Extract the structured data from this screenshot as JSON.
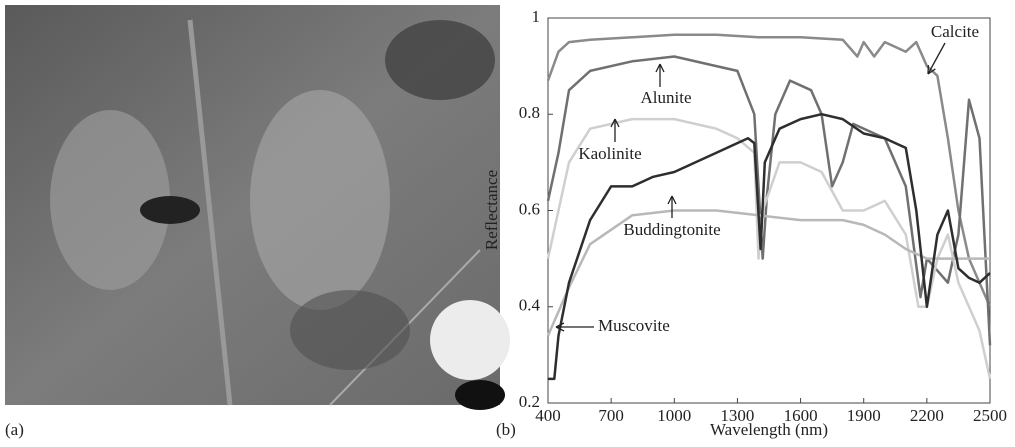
{
  "panels": {
    "a": "(a)",
    "b": "(b)"
  },
  "chart_data": {
    "type": "line",
    "xlabel": "Wavelength (nm)",
    "ylabel": "Reflectance",
    "xlim": [
      400,
      2500
    ],
    "xticks": [
      400,
      700,
      1000,
      1300,
      1600,
      1900,
      2200,
      2500
    ],
    "ylim": [
      0.2,
      1
    ],
    "yticks": [
      0.2,
      0.4,
      0.6,
      0.8,
      1
    ],
    "grid": false,
    "series": [
      {
        "name": "Calcite",
        "color": "#8a8a8a",
        "x": [
          400,
          450,
          500,
          600,
          800,
          1000,
          1200,
          1400,
          1600,
          1800,
          1870,
          1900,
          1950,
          2000,
          2100,
          2150,
          2200,
          2250,
          2300,
          2350,
          2400,
          2450,
          2500
        ],
        "values": [
          0.87,
          0.93,
          0.95,
          0.955,
          0.96,
          0.965,
          0.965,
          0.96,
          0.96,
          0.955,
          0.92,
          0.95,
          0.92,
          0.95,
          0.93,
          0.95,
          0.9,
          0.88,
          0.75,
          0.6,
          0.5,
          0.45,
          0.4
        ]
      },
      {
        "name": "Alunite",
        "color": "#707070",
        "x": [
          400,
          450,
          500,
          600,
          800,
          1000,
          1200,
          1300,
          1380,
          1420,
          1440,
          1480,
          1550,
          1650,
          1700,
          1750,
          1800,
          1850,
          2000,
          2100,
          2170,
          2200,
          2300,
          2350,
          2400,
          2450,
          2500
        ],
        "values": [
          0.62,
          0.72,
          0.85,
          0.89,
          0.91,
          0.92,
          0.9,
          0.89,
          0.8,
          0.5,
          0.63,
          0.8,
          0.87,
          0.85,
          0.8,
          0.65,
          0.7,
          0.78,
          0.75,
          0.65,
          0.42,
          0.5,
          0.45,
          0.55,
          0.83,
          0.75,
          0.32
        ]
      },
      {
        "name": "Kaolinite",
        "color": "#cfcfcf",
        "x": [
          400,
          500,
          600,
          800,
          1000,
          1200,
          1300,
          1380,
          1400,
          1420,
          1500,
          1600,
          1700,
          1800,
          1900,
          2000,
          2100,
          2160,
          2200,
          2250,
          2300,
          2350,
          2400,
          2450,
          2500
        ],
        "values": [
          0.5,
          0.7,
          0.77,
          0.79,
          0.79,
          0.77,
          0.75,
          0.72,
          0.5,
          0.6,
          0.7,
          0.7,
          0.68,
          0.6,
          0.6,
          0.62,
          0.55,
          0.4,
          0.4,
          0.5,
          0.55,
          0.45,
          0.4,
          0.35,
          0.25
        ]
      },
      {
        "name": "Buddingtonite",
        "color": "#b8b8b8",
        "x": [
          400,
          500,
          600,
          800,
          1000,
          1200,
          1400,
          1600,
          1800,
          1900,
          2000,
          2100,
          2200,
          2300,
          2400,
          2500
        ],
        "values": [
          0.34,
          0.44,
          0.53,
          0.59,
          0.6,
          0.6,
          0.59,
          0.58,
          0.58,
          0.57,
          0.55,
          0.52,
          0.5,
          0.5,
          0.5,
          0.5
        ]
      },
      {
        "name": "Muscovite",
        "color": "#2e2e2e",
        "x": [
          400,
          430,
          450,
          500,
          600,
          700,
          800,
          900,
          1000,
          1200,
          1350,
          1380,
          1410,
          1430,
          1500,
          1600,
          1700,
          1800,
          1900,
          2000,
          2100,
          2150,
          2200,
          2250,
          2300,
          2350,
          2400,
          2450,
          2500
        ],
        "values": [
          0.25,
          0.25,
          0.34,
          0.45,
          0.58,
          0.65,
          0.65,
          0.67,
          0.68,
          0.72,
          0.75,
          0.74,
          0.52,
          0.7,
          0.77,
          0.79,
          0.8,
          0.79,
          0.76,
          0.75,
          0.73,
          0.6,
          0.4,
          0.55,
          0.6,
          0.48,
          0.46,
          0.45,
          0.47
        ]
      }
    ]
  }
}
